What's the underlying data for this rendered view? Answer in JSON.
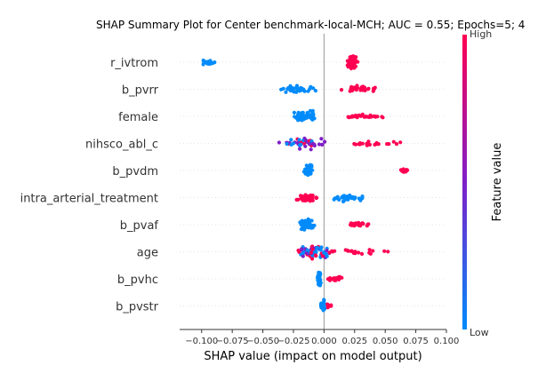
{
  "chart_data": {
    "type": "scatter",
    "subtype": "shap-beeswarm",
    "title": "SHAP Summary Plot for Center benchmark-local-MCH; AUC = 0.55; Epochs=5; 4",
    "xlabel": "SHAP value (impact on model output)",
    "xlim": [
      -0.118,
      0.1
    ],
    "xticks": [
      "−0.100",
      "−0.075",
      "−0.050",
      "−0.025",
      "0.000",
      "0.025",
      "0.050",
      "0.075",
      "0.100"
    ],
    "xtick_values": [
      -0.1,
      -0.075,
      -0.05,
      -0.025,
      0.0,
      0.025,
      0.05,
      0.075,
      0.1
    ],
    "grid": false,
    "colorbar": {
      "label": "Feature value",
      "high_label": "High",
      "low_label": "Low",
      "low_color": "#008bfb",
      "mid_color": "#7e1fc8",
      "high_color": "#ff0052"
    },
    "features": [
      {
        "name": "r_ivtrom",
        "clusters": [
          {
            "center": -0.095,
            "spread": 0.012,
            "count": 22,
            "color": "low",
            "jitter": 0.12
          },
          {
            "center": 0.023,
            "spread": 0.005,
            "count": 70,
            "color": "high",
            "jitter": 0.34
          }
        ]
      },
      {
        "name": "b_pvrr",
        "clusters": [
          {
            "center": -0.022,
            "spread": 0.02,
            "count": 38,
            "color": "low",
            "jitter": 0.16
          },
          {
            "center": 0.028,
            "spread": 0.018,
            "count": 32,
            "color": "high",
            "jitter": 0.14
          }
        ]
      },
      {
        "name": "female",
        "clusters": [
          {
            "center": -0.016,
            "spread": 0.014,
            "count": 55,
            "color": "low",
            "jitter": 0.28
          },
          {
            "center": 0.03,
            "spread": 0.022,
            "count": 28,
            "color": "high",
            "jitter": 0.12
          }
        ]
      },
      {
        "name": "nihsco_abl_c",
        "clusters": [
          {
            "center": -0.015,
            "spread": 0.025,
            "count": 45,
            "color": "mid",
            "jitter": 0.28
          },
          {
            "center": 0.04,
            "spread": 0.03,
            "count": 22,
            "color": "high",
            "jitter": 0.12
          }
        ]
      },
      {
        "name": "b_pvdm",
        "clusters": [
          {
            "center": -0.013,
            "spread": 0.004,
            "count": 55,
            "color": "low",
            "jitter": 0.3
          },
          {
            "center": 0.065,
            "spread": 0.005,
            "count": 14,
            "color": "high",
            "jitter": 0.1
          }
        ]
      },
      {
        "name": "intra_arterial_treatment",
        "clusters": [
          {
            "center": -0.015,
            "spread": 0.012,
            "count": 42,
            "color": "high",
            "jitter": 0.2
          },
          {
            "center": 0.018,
            "spread": 0.018,
            "count": 36,
            "color": "low",
            "jitter": 0.18
          }
        ]
      },
      {
        "name": "b_pvaf",
        "clusters": [
          {
            "center": -0.014,
            "spread": 0.009,
            "count": 58,
            "color": "low",
            "jitter": 0.32
          },
          {
            "center": 0.027,
            "spread": 0.013,
            "count": 28,
            "color": "high",
            "jitter": 0.12
          }
        ]
      },
      {
        "name": "age",
        "clusters": [
          {
            "center": -0.008,
            "spread": 0.022,
            "count": 78,
            "color": "mix",
            "jitter": 0.36
          },
          {
            "center": 0.03,
            "spread": 0.03,
            "count": 20,
            "color": "high",
            "jitter": 0.12
          }
        ]
      },
      {
        "name": "b_pvhc",
        "clusters": [
          {
            "center": -0.004,
            "spread": 0.002,
            "count": 50,
            "color": "low",
            "jitter": 0.34
          },
          {
            "center": 0.01,
            "spread": 0.008,
            "count": 26,
            "color": "high",
            "jitter": 0.12
          }
        ]
      },
      {
        "name": "b_pvstr",
        "clusters": [
          {
            "center": -0.001,
            "spread": 0.003,
            "count": 34,
            "color": "low",
            "jitter": 0.3
          },
          {
            "center": 0.004,
            "spread": 0.003,
            "count": 12,
            "color": "high",
            "jitter": 0.1
          }
        ]
      }
    ]
  }
}
